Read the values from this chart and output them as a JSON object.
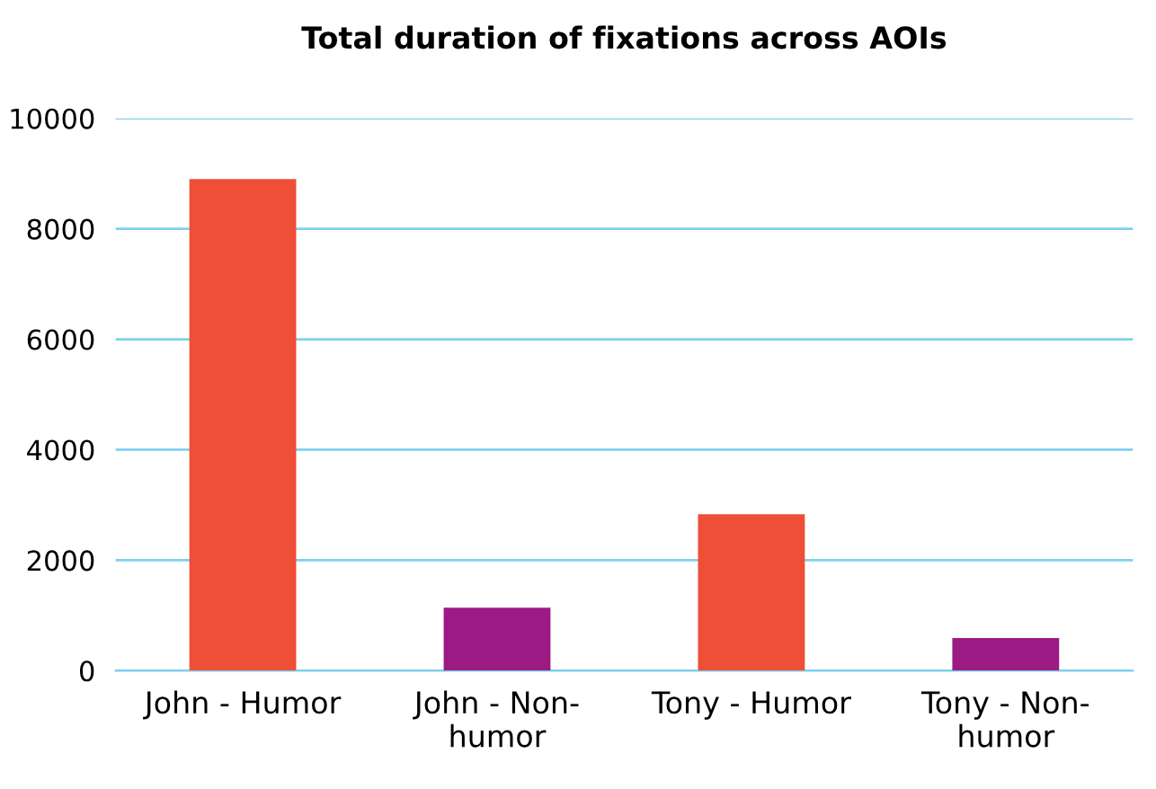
{
  "chart_data": {
    "type": "bar",
    "title": "Total duration of fixations across AOIs",
    "categories": [
      "John - Humor",
      "John - Non-\nhumor",
      "Tony - Humor",
      "Tony - Non-\nhumor"
    ],
    "values": [
      8900,
      1140,
      2830,
      590
    ],
    "colors": [
      "#ef4e37",
      "#9b1a83",
      "#ef4e37",
      "#9b1a83"
    ],
    "ylim": [
      0,
      10000
    ],
    "yticks": [
      0,
      2000,
      4000,
      6000,
      8000,
      10000
    ],
    "grid": "y"
  }
}
